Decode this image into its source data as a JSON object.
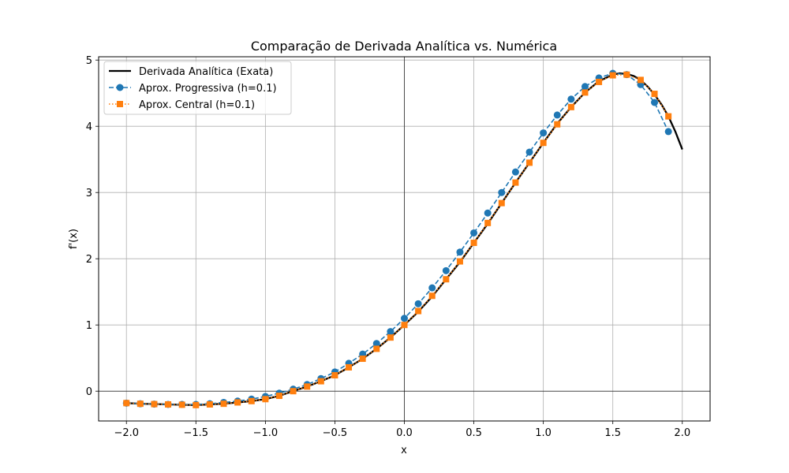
{
  "chart_data": {
    "type": "line",
    "title": "Comparação de Derivada Analítica vs. Numérica",
    "xlabel": "x",
    "ylabel": "f'(x)",
    "xlim": [
      -2.2,
      2.2
    ],
    "ylim": [
      -0.45,
      5.05
    ],
    "xticks": [
      -2.0,
      -1.5,
      -1.0,
      -0.5,
      0.0,
      0.5,
      1.0,
      1.5,
      2.0
    ],
    "xtick_labels": [
      "−2.0",
      "−1.5",
      "−1.0",
      "−0.5",
      "0.0",
      "0.5",
      "1.0",
      "1.5",
      "2.0"
    ],
    "yticks": [
      0,
      1,
      2,
      3,
      4,
      5
    ],
    "ytick_labels": [
      "0",
      "1",
      "2",
      "3",
      "4",
      "5"
    ],
    "grid": true,
    "legend_position": "upper-left",
    "series": [
      {
        "name": "Derivada Analítica (Exata)",
        "style": "solid-line",
        "color": "#000000",
        "x": [
          -2.0,
          -1.9,
          -1.8,
          -1.7,
          -1.6,
          -1.5,
          -1.4,
          -1.3,
          -1.2,
          -1.1,
          -1.0,
          -0.9,
          -0.8,
          -0.7,
          -0.6,
          -0.5,
          -0.4,
          -0.3,
          -0.2,
          -0.1,
          0.0,
          0.1,
          0.2,
          0.3,
          0.4,
          0.5,
          0.6,
          0.7,
          0.8,
          0.9,
          1.0,
          1.1,
          1.2,
          1.3,
          1.4,
          1.5,
          1.55,
          1.6,
          1.65,
          1.7,
          1.75,
          1.8,
          1.85,
          1.9,
          1.95,
          2.0
        ],
        "y": [
          -0.18,
          -0.19,
          -0.195,
          -0.2,
          -0.205,
          -0.21,
          -0.2,
          -0.19,
          -0.17,
          -0.15,
          -0.12,
          -0.07,
          0.0,
          0.07,
          0.15,
          0.24,
          0.36,
          0.49,
          0.64,
          0.81,
          1.0,
          1.2,
          1.43,
          1.69,
          1.95,
          2.24,
          2.53,
          2.84,
          3.15,
          3.45,
          3.75,
          4.04,
          4.29,
          4.51,
          4.68,
          4.78,
          4.8,
          4.79,
          4.76,
          4.7,
          4.6,
          4.48,
          4.33,
          4.15,
          3.92,
          3.65
        ]
      },
      {
        "name": "Aprox. Progressiva (h=0.1)",
        "style": "dashed-circle",
        "color": "#1f77b4",
        "x": [
          -2.0,
          -1.9,
          -1.8,
          -1.7,
          -1.6,
          -1.5,
          -1.4,
          -1.3,
          -1.2,
          -1.1,
          -1.0,
          -0.9,
          -0.8,
          -0.7,
          -0.6,
          -0.5,
          -0.4,
          -0.3,
          -0.2,
          -0.1,
          0.0,
          0.1,
          0.2,
          0.3,
          0.4,
          0.5,
          0.6,
          0.7,
          0.8,
          0.9,
          1.0,
          1.1,
          1.2,
          1.3,
          1.4,
          1.5,
          1.6,
          1.7,
          1.8,
          1.9
        ],
        "y": [
          -0.18,
          -0.19,
          -0.195,
          -0.2,
          -0.2,
          -0.2,
          -0.19,
          -0.17,
          -0.15,
          -0.12,
          -0.08,
          -0.03,
          0.03,
          0.1,
          0.19,
          0.29,
          0.42,
          0.56,
          0.72,
          0.9,
          1.1,
          1.32,
          1.56,
          1.82,
          2.1,
          2.39,
          2.69,
          3.0,
          3.31,
          3.61,
          3.9,
          4.17,
          4.41,
          4.6,
          4.73,
          4.8,
          4.78,
          4.63,
          4.36,
          3.92
        ]
      },
      {
        "name": "Aprox. Central (h=0.1)",
        "style": "dotted-square",
        "color": "#ff7f0e",
        "x": [
          -2.0,
          -1.9,
          -1.8,
          -1.7,
          -1.6,
          -1.5,
          -1.4,
          -1.3,
          -1.2,
          -1.1,
          -1.0,
          -0.9,
          -0.8,
          -0.7,
          -0.6,
          -0.5,
          -0.4,
          -0.3,
          -0.2,
          -0.1,
          0.0,
          0.1,
          0.2,
          0.3,
          0.4,
          0.5,
          0.6,
          0.7,
          0.8,
          0.9,
          1.0,
          1.1,
          1.2,
          1.3,
          1.4,
          1.5,
          1.6,
          1.7,
          1.8,
          1.9
        ],
        "y": [
          -0.18,
          -0.19,
          -0.195,
          -0.2,
          -0.205,
          -0.21,
          -0.2,
          -0.19,
          -0.17,
          -0.15,
          -0.12,
          -0.07,
          0.0,
          0.07,
          0.15,
          0.24,
          0.36,
          0.49,
          0.64,
          0.81,
          1.0,
          1.21,
          1.44,
          1.69,
          1.96,
          2.24,
          2.54,
          2.84,
          3.15,
          3.45,
          3.75,
          4.03,
          4.29,
          4.51,
          4.67,
          4.77,
          4.78,
          4.7,
          4.49,
          4.15
        ]
      }
    ]
  }
}
